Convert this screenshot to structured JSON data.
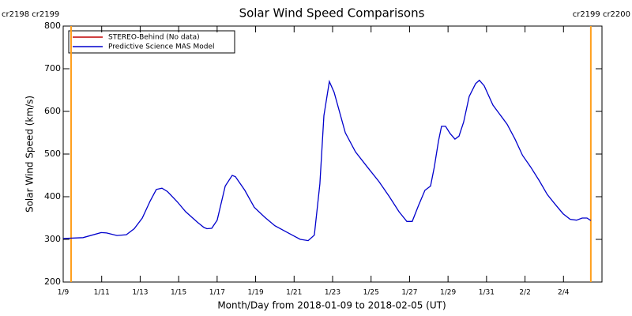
{
  "chart_data": {
    "type": "line",
    "title": "Solar Wind Speed Comparisons",
    "x_label": "Month/Day from 2018-01-09 to 2018-02-05 (UT)",
    "y_label": "Solar Wind Speed (km/s)",
    "xlim": [
      0,
      28
    ],
    "ylim": [
      200,
      800
    ],
    "xticks": [
      {
        "value": 0,
        "label": "1/9"
      },
      {
        "value": 2,
        "label": "1/11"
      },
      {
        "value": 4,
        "label": "1/13"
      },
      {
        "value": 6,
        "label": "1/15"
      },
      {
        "value": 8,
        "label": "1/17"
      },
      {
        "value": 10,
        "label": "1/19"
      },
      {
        "value": 12,
        "label": "1/21"
      },
      {
        "value": 14,
        "label": "1/23"
      },
      {
        "value": 16,
        "label": "1/25"
      },
      {
        "value": 18,
        "label": "1/27"
      },
      {
        "value": 20,
        "label": "1/29"
      },
      {
        "value": 22,
        "label": "1/31"
      },
      {
        "value": 24,
        "label": "2/2"
      },
      {
        "value": 26,
        "label": "2/4"
      }
    ],
    "yticks": [
      200,
      300,
      400,
      500,
      600,
      700,
      800
    ],
    "rotation_markers": [
      {
        "x": 0.41,
        "label": "cr2198 cr2199"
      },
      {
        "x": 27.42,
        "label": "cr2199 cr2200"
      }
    ],
    "marker_color": "#ff9f1c",
    "series": [
      {
        "name": "STEREO-Behind (No data)",
        "color": "#c00000",
        "x": [],
        "values": []
      },
      {
        "name": "Predictive Science MAS Model",
        "color": "#0000cc",
        "x": [
          0,
          1.03,
          1.97,
          2.26,
          2.79,
          3.28,
          3.69,
          4.11,
          4.52,
          4.84,
          5.13,
          5.42,
          5.95,
          6.36,
          6.98,
          7.31,
          7.47,
          7.72,
          8.0,
          8.42,
          8.78,
          8.95,
          9.44,
          9.93,
          10.47,
          11.0,
          11.49,
          11.99,
          12.32,
          12.73,
          13.05,
          13.34,
          13.55,
          13.83,
          14.08,
          14.66,
          15.19,
          15.8,
          16.42,
          16.95,
          17.45,
          17.86,
          18.14,
          18.47,
          18.8,
          19.09,
          19.29,
          19.5,
          19.66,
          19.87,
          20.11,
          20.36,
          20.57,
          20.81,
          21.1,
          21.43,
          21.63,
          21.88,
          22.33,
          22.66,
          23.07,
          23.48,
          23.87,
          24.29,
          24.75,
          25.16,
          25.57,
          25.98,
          26.35,
          26.68,
          26.97,
          27.22,
          27.42
        ],
        "values": [
          302,
          304,
          316,
          315,
          309,
          311,
          325,
          350,
          390,
          417,
          420,
          412,
          387,
          365,
          340,
          328,
          325,
          326,
          345,
          425,
          450,
          447,
          415,
          375,
          352,
          332,
          320,
          308,
          300,
          297,
          310,
          430,
          590,
          670,
          645,
          550,
          505,
          470,
          435,
          400,
          365,
          342,
          342,
          380,
          415,
          425,
          470,
          530,
          565,
          565,
          548,
          535,
          542,
          575,
          635,
          665,
          673,
          660,
          615,
          595,
          570,
          535,
          497,
          470,
          437,
          405,
          382,
          360,
          347,
          345,
          350,
          350,
          344
        ]
      }
    ]
  }
}
